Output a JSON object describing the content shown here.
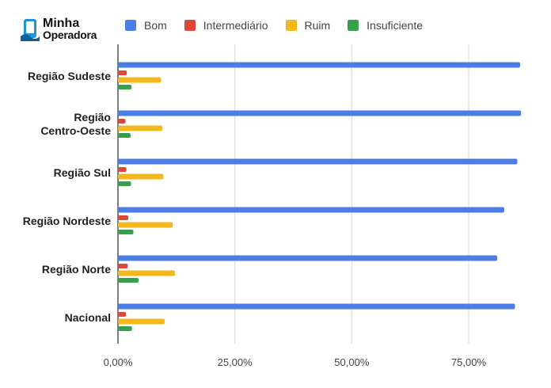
{
  "brand": {
    "line1": "Minha",
    "line2": "Operadora",
    "colors": {
      "phone": "#1f95d6",
      "text": "#111111"
    }
  },
  "chart_data": {
    "type": "bar",
    "orientation": "horizontal",
    "categories": [
      "Região Sudeste",
      "Região Centro-Oeste",
      "Região Sul",
      "Região Nordeste",
      "Região Norte",
      "Nacional"
    ],
    "series": [
      {
        "name": "Bom",
        "color": "#4a7ee6",
        "values": [
          86.0,
          86.2,
          85.4,
          82.6,
          81.1,
          84.9
        ]
      },
      {
        "name": "Intermediário",
        "color": "#e0463a",
        "values": [
          1.9,
          1.6,
          1.8,
          2.2,
          2.1,
          1.7
        ]
      },
      {
        "name": "Ruim",
        "color": "#f4b81c",
        "values": [
          9.2,
          9.5,
          9.7,
          11.7,
          12.2,
          10.0
        ]
      },
      {
        "name": "Insuficiente",
        "color": "#35a14d",
        "values": [
          2.9,
          2.7,
          2.8,
          3.3,
          4.4,
          3.0
        ]
      }
    ],
    "x_ticks": [
      "0,00%",
      "25,00%",
      "50,00%",
      "75,00%"
    ],
    "x_tick_values": [
      0,
      25,
      50,
      75
    ],
    "xlim": [
      0,
      90
    ],
    "grid": true,
    "legend_position": "top",
    "title": "",
    "xlabel": "",
    "ylabel": ""
  }
}
